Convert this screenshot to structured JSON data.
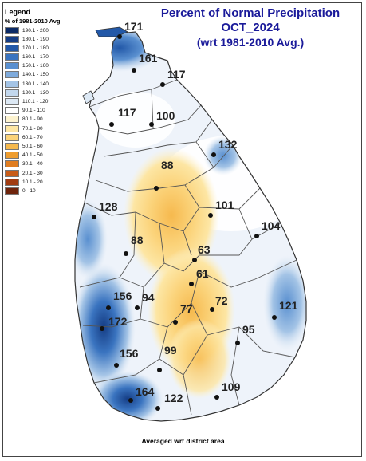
{
  "title": {
    "line1": "Percent of Normal Precipitation",
    "line2": "OCT_2024",
    "line3": "(wrt 1981-2010 Avg.)"
  },
  "legend": {
    "title": "Legend",
    "subtitle": "% of 1981-2010 Avg",
    "items": [
      {
        "label": "190.1 - 200",
        "color": "#0b2a66"
      },
      {
        "label": "180.1 - 190",
        "color": "#153d85"
      },
      {
        "label": "170.1 - 180",
        "color": "#2258a8"
      },
      {
        "label": "160.1 - 170",
        "color": "#3a74c0"
      },
      {
        "label": "150.1 - 160",
        "color": "#5a90d0"
      },
      {
        "label": "140.1 - 150",
        "color": "#7fabdc"
      },
      {
        "label": "130.1 - 140",
        "color": "#a4c4e6"
      },
      {
        "label": "120.1 - 130",
        "color": "#c3d8ee"
      },
      {
        "label": "110.1 - 120",
        "color": "#dde9f5"
      },
      {
        "label": "90.1 - 110",
        "color": "#ffffff"
      },
      {
        "label": "80.1 - 90",
        "color": "#fdf3cf"
      },
      {
        "label": "70.1 - 80",
        "color": "#fde6a4"
      },
      {
        "label": "60.1 - 70",
        "color": "#fbd37a"
      },
      {
        "label": "50.1 - 60",
        "color": "#f6b94e"
      },
      {
        "label": "40.1 - 50",
        "color": "#ef9d2e"
      },
      {
        "label": "30.1 - 40",
        "color": "#e07d20"
      },
      {
        "label": "20.1 - 30",
        "color": "#c95c18"
      },
      {
        "label": "10.1 - 20",
        "color": "#a13c12"
      },
      {
        "label": "0 - 10",
        "color": "#6e240c"
      }
    ]
  },
  "stations": [
    {
      "value": "171"
    },
    {
      "value": "161"
    },
    {
      "value": "117"
    },
    {
      "value": "117"
    },
    {
      "value": "100"
    },
    {
      "value": "132"
    },
    {
      "value": "88"
    },
    {
      "value": "101"
    },
    {
      "value": "128"
    },
    {
      "value": "104"
    },
    {
      "value": "88"
    },
    {
      "value": "63"
    },
    {
      "value": "61"
    },
    {
      "value": "156"
    },
    {
      "value": "94"
    },
    {
      "value": "77"
    },
    {
      "value": "72"
    },
    {
      "value": "121"
    },
    {
      "value": "172"
    },
    {
      "value": "95"
    },
    {
      "value": "156"
    },
    {
      "value": "99"
    },
    {
      "value": "109"
    },
    {
      "value": "164"
    },
    {
      "value": "122"
    }
  ],
  "footer": "Averaged wrt district area"
}
